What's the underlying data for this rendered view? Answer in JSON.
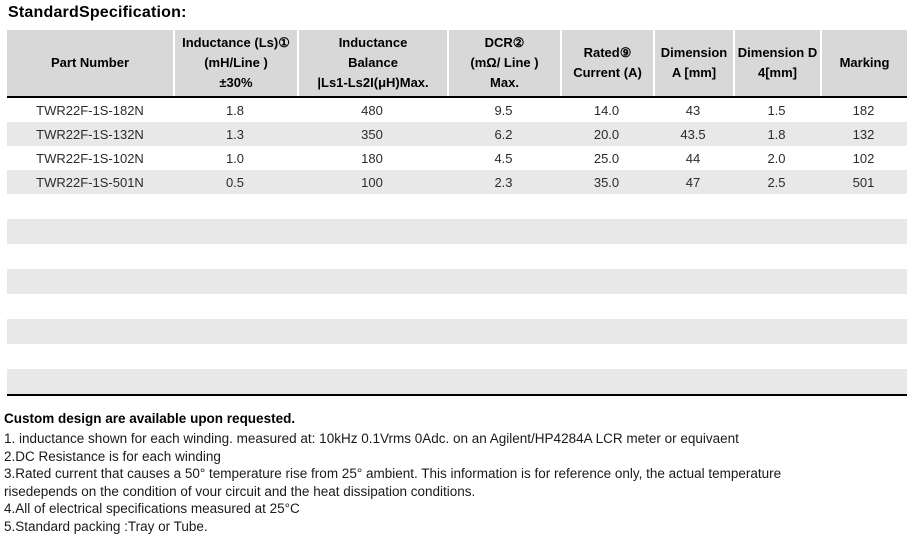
{
  "page": {
    "title": "StandardSpecification:"
  },
  "table": {
    "columns": [
      {
        "id": "part-number",
        "lines": [
          "Part Number"
        ]
      },
      {
        "id": "inductance",
        "lines": [
          "Inductance (Ls)①",
          "(mH/Line )",
          "±30%"
        ]
      },
      {
        "id": "inductance-balance",
        "lines": [
          "Inductance",
          "Balance",
          "|Ls1-Ls2I(μH)Max."
        ]
      },
      {
        "id": "dcr",
        "lines": [
          "DCR②",
          "(mΩ/ Line )",
          "Max."
        ]
      },
      {
        "id": "rated-current",
        "lines": [
          "Rated⑨",
          "Current (A)"
        ]
      },
      {
        "id": "dimension-a",
        "lines": [
          "Dimension",
          "A [mm]"
        ]
      },
      {
        "id": "dimension-d",
        "lines": [
          "Dimension D",
          "4[mm]"
        ]
      },
      {
        "id": "marking",
        "lines": [
          "Marking"
        ]
      }
    ],
    "rows": [
      [
        "TWR22F-1S-182N",
        "1.8",
        "480",
        "9.5",
        "14.0",
        "43",
        "1.5",
        "182"
      ],
      [
        "TWR22F-1S-132N",
        "1.3",
        "350",
        "6.2",
        "20.0",
        "43.5",
        "1.8",
        "132"
      ],
      [
        "TWR22F-1S-102N",
        "1.0",
        "180",
        "4.5",
        "25.0",
        "44",
        "2.0",
        "102"
      ],
      [
        "TWR22F-1S-501N",
        "0.5",
        "100",
        "2.3",
        "35.0",
        "47",
        "2.5",
        "501"
      ]
    ],
    "empty_row_count": 8
  },
  "notes": {
    "heading": "Custom design are available upon requested.",
    "lines": [
      "1. inductance shown for each winding. measured at: 10kHz 0.1Vrms 0Adc. on an Agilent/HP4284A LCR meter or equivaent",
      "2.DC Resistance is for each winding",
      "3.Rated current that causes a 50° temperature rise from 25° ambient. This information is for reference only, the actual temperature",
      "risedepends on the condition of vour circuit and the heat dissipation conditions.",
      "4.All of electrical specifications measured at 25°C",
      "5.Standard packing :Tray or Tube."
    ]
  },
  "colors": {
    "header_bg": "#d8d8d8",
    "stripe_bg": "#e8e8e8",
    "border": "#000000"
  }
}
